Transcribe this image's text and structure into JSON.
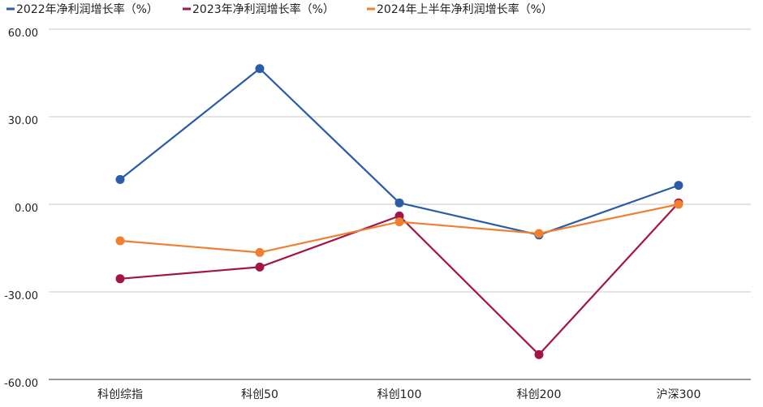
{
  "chart_data": {
    "type": "line",
    "categories": [
      "科创综指",
      "科创50",
      "科创100",
      "科创200",
      "沪深300"
    ],
    "series": [
      {
        "name": "2022年净利润增长率（%）",
        "color": "#2a5ca8",
        "values": [
          8.5,
          46.5,
          0.5,
          -10.5,
          6.5
        ]
      },
      {
        "name": "2023年净利润增长率（%）",
        "color": "#a31545",
        "values": [
          -25.5,
          -21.5,
          -4.0,
          -51.5,
          0.5
        ]
      },
      {
        "name": "2024年上半年净利润增长率（%）",
        "color": "#f08030",
        "values": [
          -12.5,
          -16.5,
          -6.0,
          -10.0,
          0.0
        ]
      }
    ],
    "y_ticks": [
      "60.00",
      "30.00",
      "0.00",
      "-30.00",
      "-60.00"
    ],
    "ylim": [
      -60,
      60
    ],
    "grid": true,
    "legend_position": "top-left"
  }
}
